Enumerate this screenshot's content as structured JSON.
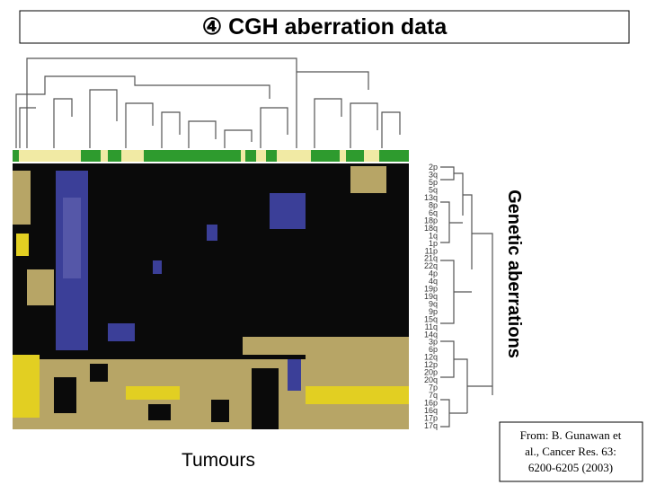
{
  "header": {
    "title": "④ CGH aberration data"
  },
  "figure": {
    "x_label": "Tumours",
    "y_label": "Genetic aberrations",
    "row_labels": [
      "2p",
      "3q",
      "5p",
      "5q",
      "13q",
      "8p",
      "6q",
      "18p",
      "18q",
      "1q",
      "1p",
      "11p",
      "21q",
      "22q",
      "4p",
      "4q",
      "19p",
      "19q",
      "9q",
      "9p",
      "15q",
      "11q",
      "14q",
      "3p",
      "6p",
      "12q",
      "12p",
      "20p",
      "20q",
      "7p",
      "7q",
      "16p",
      "16q",
      "17p",
      "17q"
    ]
  },
  "citation": {
    "lines": [
      "From: B. Gunawan et",
      "al., Cancer Res. 63:",
      "6200-6205 (2003)"
    ]
  }
}
